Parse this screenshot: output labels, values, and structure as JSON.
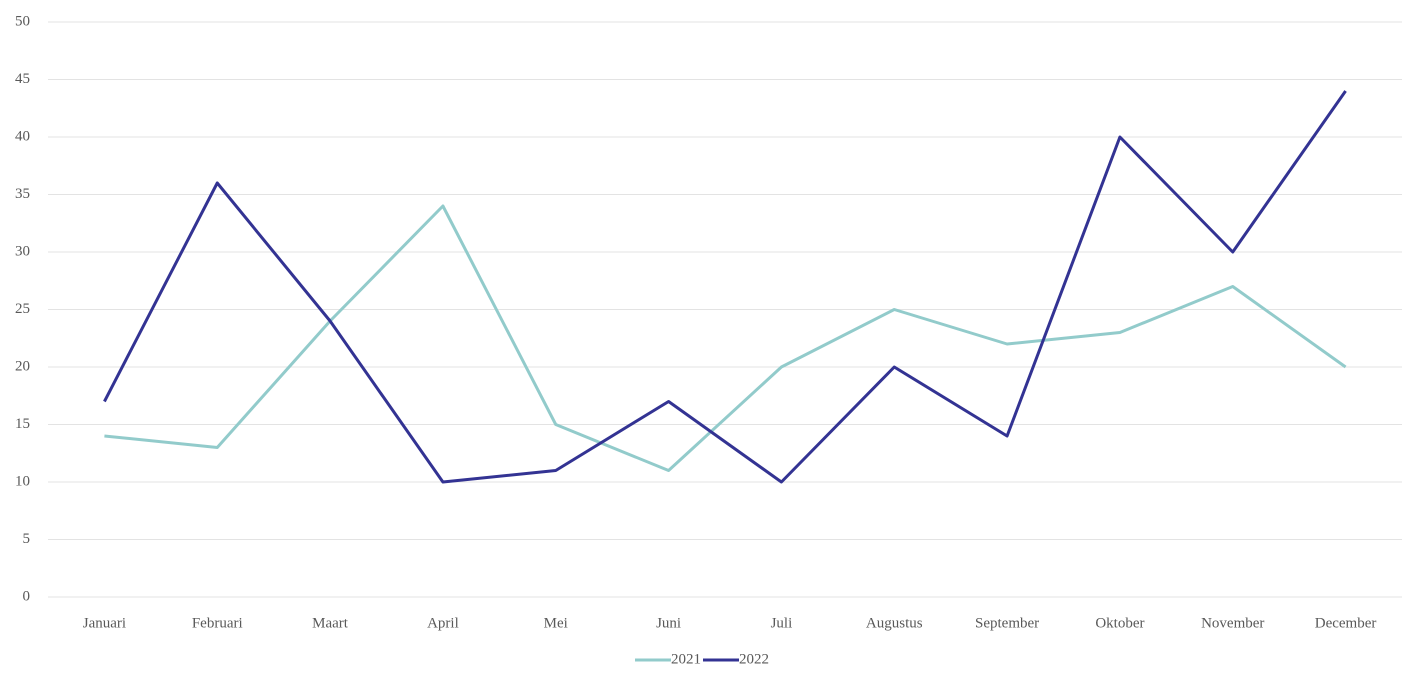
{
  "chart_data": {
    "type": "line",
    "categories": [
      "Januari",
      "Februari",
      "Maart",
      "April",
      "Mei",
      "Juni",
      "Juli",
      "Augustus",
      "September",
      "Oktober",
      "November",
      "December"
    ],
    "series": [
      {
        "name": "2021",
        "color": "#92cbcb",
        "values": [
          14,
          13,
          24,
          34,
          15,
          11,
          20,
          25,
          22,
          23,
          27,
          20
        ]
      },
      {
        "name": "2022",
        "color": "#333393",
        "values": [
          17,
          36,
          24,
          10,
          11,
          17,
          10,
          20,
          14,
          40,
          30,
          44
        ]
      }
    ],
    "ylim": [
      0,
      50
    ],
    "yticks": [
      0,
      5,
      10,
      15,
      20,
      25,
      30,
      35,
      40,
      45,
      50
    ],
    "grid": true,
    "legend": "bottom"
  }
}
